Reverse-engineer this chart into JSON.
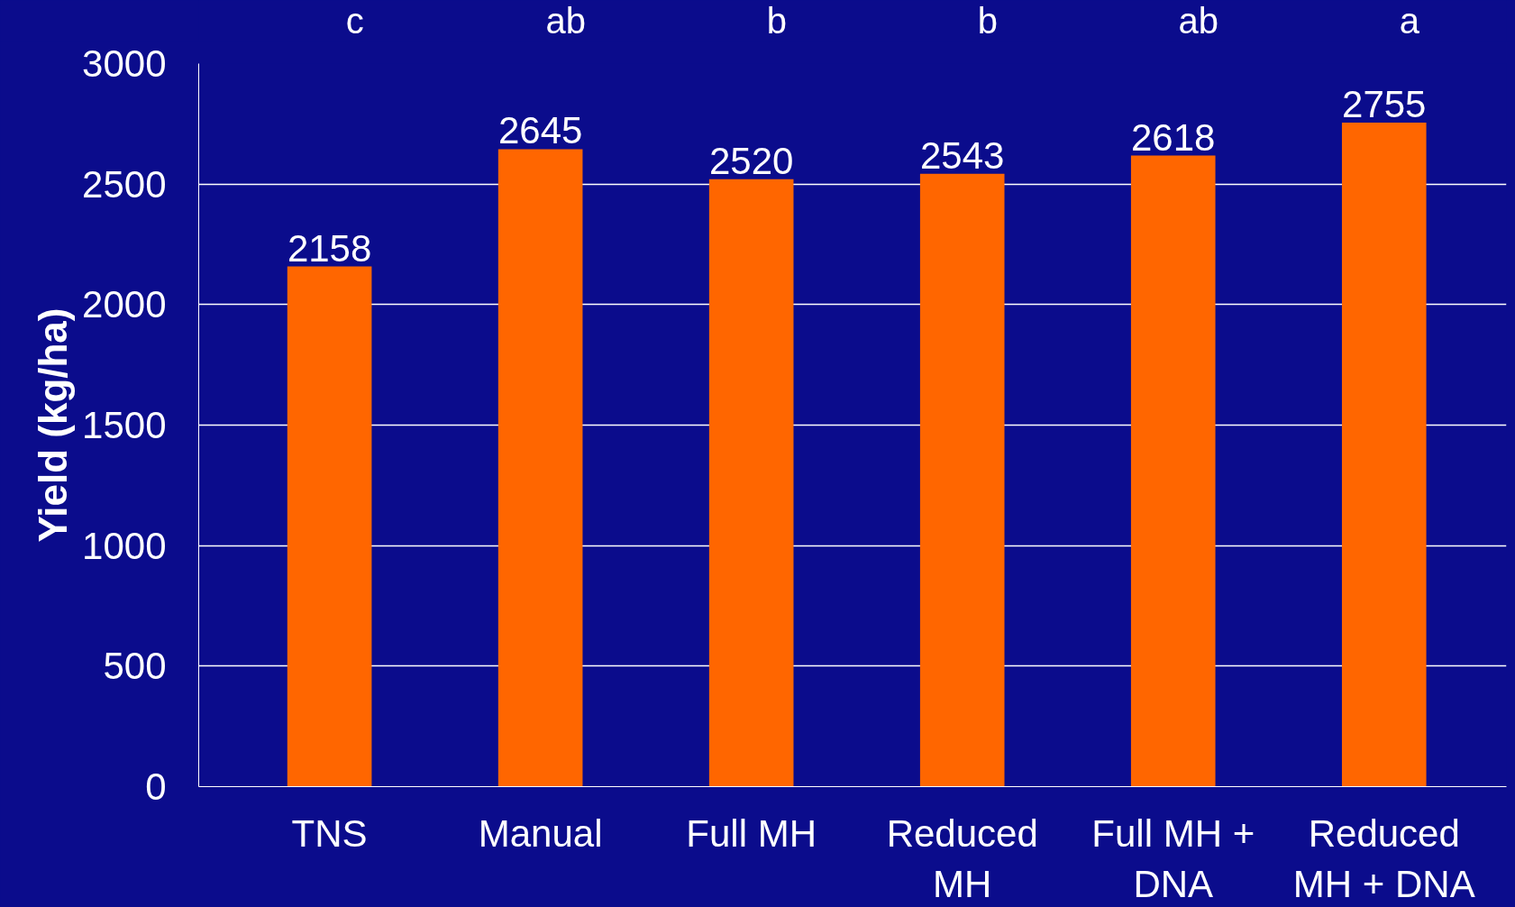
{
  "chart_data": {
    "type": "bar",
    "ylabel": "Yield (kg/ha)",
    "categories": [
      "TNS",
      "Manual",
      "Full MH",
      "Reduced\nMH",
      "Full MH +\nDNA",
      "Reduced\nMH + DNA"
    ],
    "values": [
      2158,
      2645,
      2520,
      2543,
      2618,
      2755
    ],
    "color": "#ff6600",
    "data_labels": true,
    "grid": "y",
    "legend": false,
    "ylim": [
      0,
      3000
    ],
    "yticks": [
      0,
      500,
      1000,
      1500,
      2000,
      2500,
      3000
    ],
    "annotations": [
      "c",
      "ab",
      "b",
      "b",
      "ab",
      "a"
    ]
  }
}
